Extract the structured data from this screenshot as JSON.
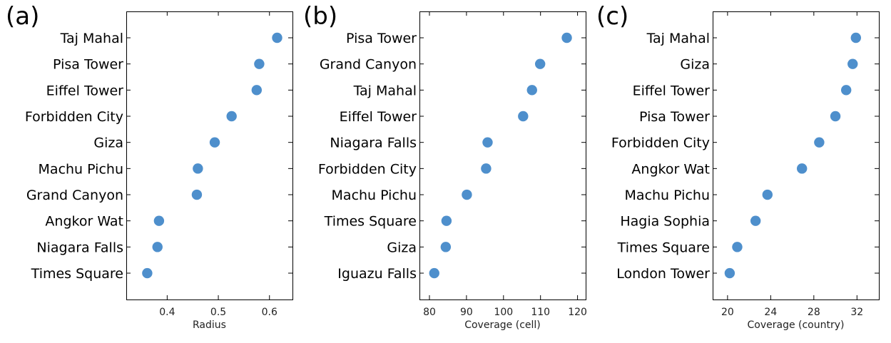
{
  "chart_data": [
    {
      "type": "scatter",
      "panel_label": "(a)",
      "xlabel": "Radius",
      "xticks": [
        "0.4",
        "0.5",
        "0.6"
      ],
      "xtick_values": [
        0.4,
        0.5,
        0.6
      ],
      "xlim": [
        0.32,
        0.645
      ],
      "color": "#4e8fcc",
      "categories": [
        "Taj Mahal",
        "Pisa Tower",
        "Eiffel Tower",
        "Forbidden City",
        "Giza",
        "Machu Pichu",
        "Grand Canyon",
        "Angkor Wat",
        "Niagara Falls",
        "Times Square"
      ],
      "values": [
        0.615,
        0.58,
        0.575,
        0.526,
        0.493,
        0.46,
        0.458,
        0.384,
        0.381,
        0.361
      ]
    },
    {
      "type": "scatter",
      "panel_label": "(b)",
      "xlabel": "Coverage (cell)",
      "xticks": [
        "80",
        "90",
        "100",
        "110",
        "120"
      ],
      "xtick_values": [
        80,
        90,
        100,
        110,
        120
      ],
      "xlim": [
        77.3,
        122.2
      ],
      "color": "#4e8fcc",
      "categories": [
        "Pisa Tower",
        "Grand Canyon",
        "Taj Mahal",
        "Eiffel Tower",
        "Niagara Falls",
        "Forbidden City",
        "Machu Pichu",
        "Times Square",
        "Giza",
        "Iguazu Falls"
      ],
      "values": [
        117.1,
        109.9,
        107.7,
        105.3,
        95.7,
        95.3,
        90.1,
        84.6,
        84.4,
        81.3
      ]
    },
    {
      "type": "scatter",
      "panel_label": "(c)",
      "xlabel": "Coverage (country)",
      "xticks": [
        "20",
        "24",
        "28",
        "32"
      ],
      "xtick_values": [
        20,
        24,
        28,
        32
      ],
      "xlim": [
        18.62,
        34.03
      ],
      "color": "#4e8fcc",
      "categories": [
        "Taj Mahal",
        "Giza",
        "Eiffel Tower",
        "Pisa Tower",
        "Forbidden City",
        "Angkor Wat",
        "Machu Pichu",
        "Hagia Sophia",
        "Times Square",
        "London Tower"
      ],
      "values": [
        31.9,
        31.6,
        31.0,
        30.0,
        28.5,
        26.9,
        23.7,
        22.6,
        20.9,
        20.2
      ]
    }
  ]
}
